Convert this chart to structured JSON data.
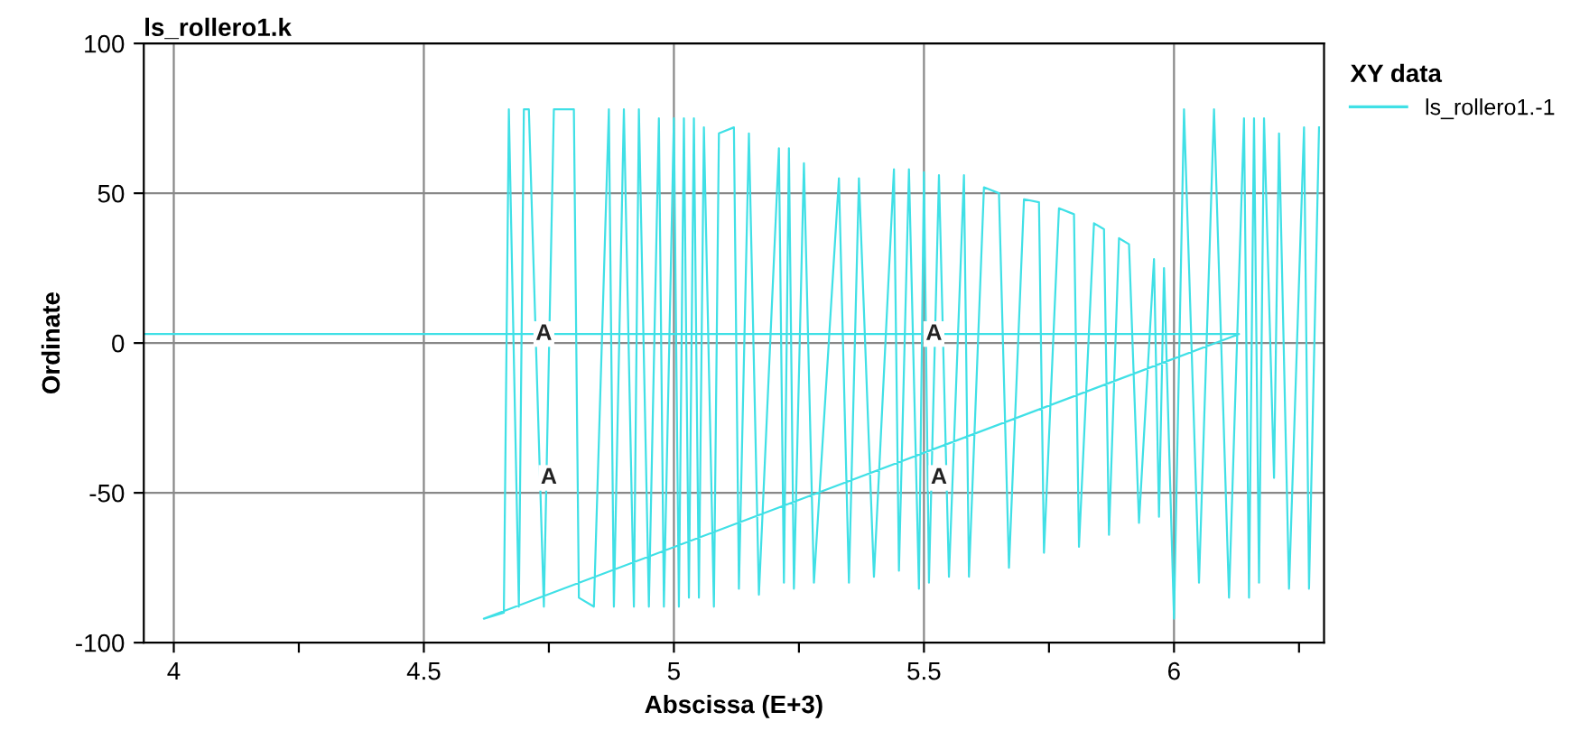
{
  "chart_data": {
    "type": "line",
    "title": "ls_rollero1.k",
    "xlabel": "Abscissa (E+3)",
    "ylabel": "Ordinate",
    "legend_title": "XY data",
    "xlim": [
      3.94,
      6.3
    ],
    "ylim": [
      -100,
      100
    ],
    "xticks": [
      4,
      {
        "value": 4.25,
        "label": null
      },
      4.5,
      {
        "value": 4.75,
        "label": null
      },
      5,
      {
        "value": 5.25,
        "label": null
      },
      5.5,
      {
        "value": 5.75,
        "label": null
      },
      6,
      {
        "value": 6.25,
        "label": null
      }
    ],
    "yticks": [
      -100,
      -50,
      0,
      50,
      100
    ],
    "grid": true,
    "legend": "top right",
    "marker": "none",
    "line_style": "solid",
    "annotations": [
      {
        "text": "A",
        "x": 4.74,
        "y": 3
      },
      {
        "text": "A",
        "x": 4.75,
        "y": -45
      },
      {
        "text": "A",
        "x": 5.52,
        "y": 3
      },
      {
        "text": "A",
        "x": 5.53,
        "y": -45
      }
    ],
    "series": [
      {
        "name": "ls_rollero1.-1",
        "color": "#40e0e6",
        "x": [
          3.94,
          6.13,
          4.62,
          4.66,
          4.67,
          4.69,
          4.7,
          4.71,
          4.74,
          4.76,
          4.8,
          4.81,
          4.84,
          4.87,
          4.88,
          4.9,
          4.92,
          4.93,
          4.95,
          4.97,
          4.98,
          5.0,
          5.01,
          5.02,
          5.03,
          5.04,
          5.05,
          5.06,
          5.08,
          5.09,
          5.12,
          5.13,
          5.15,
          5.17,
          5.21,
          5.22,
          5.23,
          5.24,
          5.26,
          5.28,
          5.33,
          5.35,
          5.37,
          5.4,
          5.44,
          5.45,
          5.47,
          5.49,
          5.5,
          5.51,
          5.53,
          5.55,
          5.58,
          5.59,
          5.62,
          5.65,
          5.67,
          5.7,
          5.73,
          5.74,
          5.77,
          5.8,
          5.81,
          5.84,
          5.86,
          5.87,
          5.89,
          5.91,
          5.93,
          5.96,
          5.97,
          5.98,
          6.0,
          6.02,
          6.05,
          6.08,
          6.11,
          6.14,
          6.15,
          6.16,
          6.17,
          6.18,
          6.2,
          6.21,
          6.23,
          6.26,
          6.27,
          6.29
        ],
        "values": [
          3,
          3,
          -92,
          -90,
          78,
          -88,
          78,
          78,
          -88,
          78,
          78,
          -85,
          -88,
          78,
          -88,
          78,
          -88,
          78,
          -88,
          75,
          -88,
          75,
          -88,
          75,
          -85,
          75,
          -85,
          72,
          -88,
          70,
          72,
          -82,
          70,
          -84,
          65,
          -80,
          65,
          -82,
          60,
          -80,
          55,
          -80,
          55,
          -78,
          58,
          -76,
          58,
          -82,
          57,
          -80,
          56,
          -78,
          56,
          -78,
          52,
          50,
          -75,
          48,
          47,
          -70,
          45,
          43,
          -68,
          40,
          38,
          -64,
          35,
          33,
          -60,
          28,
          -58,
          25,
          -92,
          78,
          -80,
          78,
          -85,
          75,
          -85,
          75,
          -80,
          75,
          -45,
          70,
          -82,
          72,
          -82,
          72
        ]
      }
    ]
  }
}
